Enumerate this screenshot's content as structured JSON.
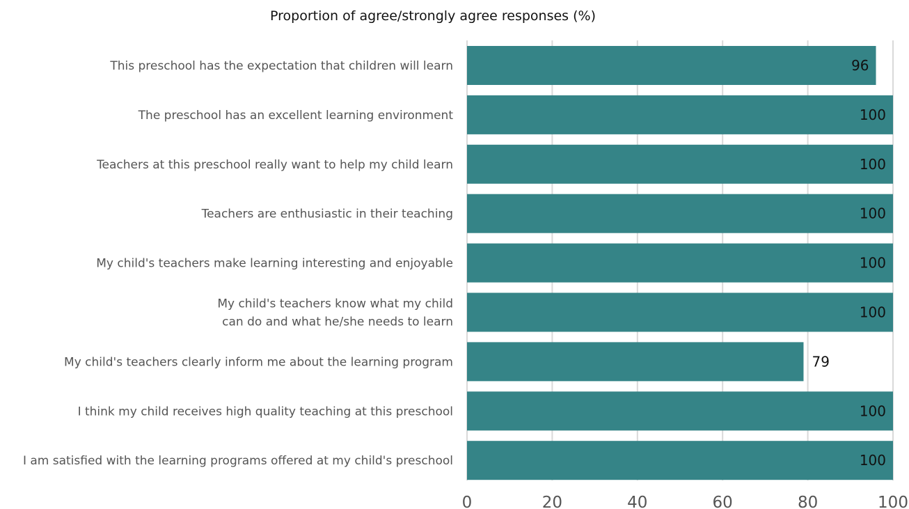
{
  "chart_data": {
    "type": "bar",
    "orientation": "horizontal",
    "title": "Proportion of agree/strongly agree responses (%)",
    "categories": [
      [
        "This preschool has the expectation that children will learn"
      ],
      [
        "The preschool has an excellent learning environment"
      ],
      [
        "Teachers at this preschool really want to help my child learn"
      ],
      [
        "Teachers are enthusiastic in their teaching"
      ],
      [
        "My child's teachers make learning interesting and enjoyable"
      ],
      [
        "My child's teachers know what my child",
        "can do and what he/she needs to learn"
      ],
      [
        "My child's teachers clearly inform me about the learning program"
      ],
      [
        "I think my child receives high quality teaching at this preschool"
      ],
      [
        "I am satisfied with the learning programs offered at my child's preschool"
      ]
    ],
    "values": [
      96,
      100,
      100,
      100,
      100,
      100,
      79,
      100,
      100
    ],
    "value_labels": [
      "96",
      "100",
      "100",
      "100",
      "100",
      "100",
      "79",
      "100",
      "100"
    ],
    "xlim": [
      0,
      100
    ],
    "xticks": [
      "0",
      "20",
      "40",
      "60",
      "80",
      "100"
    ],
    "grid": "vertical",
    "colors": {
      "bar": "#358487",
      "grid": "#d9d9d9"
    }
  }
}
